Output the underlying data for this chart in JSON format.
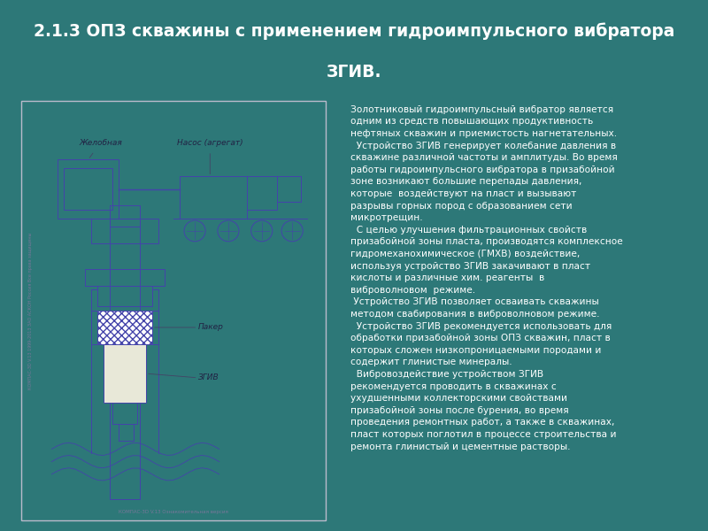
{
  "bg_color": "#2d7878",
  "title_line1": "2.1.3 ОПЗ скважины с применением гидроимпульсного вибратора",
  "title_line2": "ЗГИВ.",
  "title_color": "#ffffff",
  "title_fontsize": 13.5,
  "diagram_bg": "#f0f0f0",
  "diagram_border": "#bbbbcc",
  "draw_color": "#4444aa",
  "text_color": "#ffffff",
  "body_fontsize": 7.6,
  "label_fontsize": 6.5,
  "footer_text": "КОМПАС-3D V.13 Ознакомительная версия",
  "side_text": "КОМПАС-3D V.13 1999-2013 ЗАО АСКОН Россия Все права защищены",
  "label_zhelobnaya": "Желобная",
  "label_nasos": "Насос (агрегат)",
  "label_paker": "Пакер",
  "label_zgiv": "ЗГИВ",
  "body_text": "Золотниковый гидроимпульсный вибратор является\nодним из средств повышающих продуктивность\nнефтяных скважин и приемистость нагнетательных.\n  Устройство ЗГИВ генерирует колебание давления в\nскважине различной частоты и амплитуды. Во время\nработы гидроимпульсного вибратора в призабойной\nзоне возникают большие перепады давления,\nкоторые  воздействуют на пласт и вызывают\nразрывы горных пород с образованием сети\nмикротрещин.\n  С целью улучшения фильтрационных свойств\nпризабойной зоны пласта, производятся комплексное\nгидромеханохимическое (ГМХВ) воздействие,\nиспользуя устройство ЗГИВ закачивают в пласт\nкислоты и различные хим. реагенты  в\nвиброволновом  режиме.\n Устройство ЗГИВ позволяет осваивать скважины\nметодом свабирования в виброволновом режиме.\n  Устройство ЗГИВ рекомендуется использовать для\nобработки призабойной зоны ОПЗ скважин, пласт в\nкоторых сложен низкопроницаемыми породами и\nсодержит глинистые минералы.\n  Вибровоздействие устройством ЗГИВ\nрекомендуется проводить в скважинах с\nухудшенными коллекторскими свойствами\nпризабойной зоны после бурения, во время\nпроведения ремонтных работ, а также в скважинах,\nпласт которых поглотил в процессе строительства и\nремонта глинистый и цементные растворы."
}
